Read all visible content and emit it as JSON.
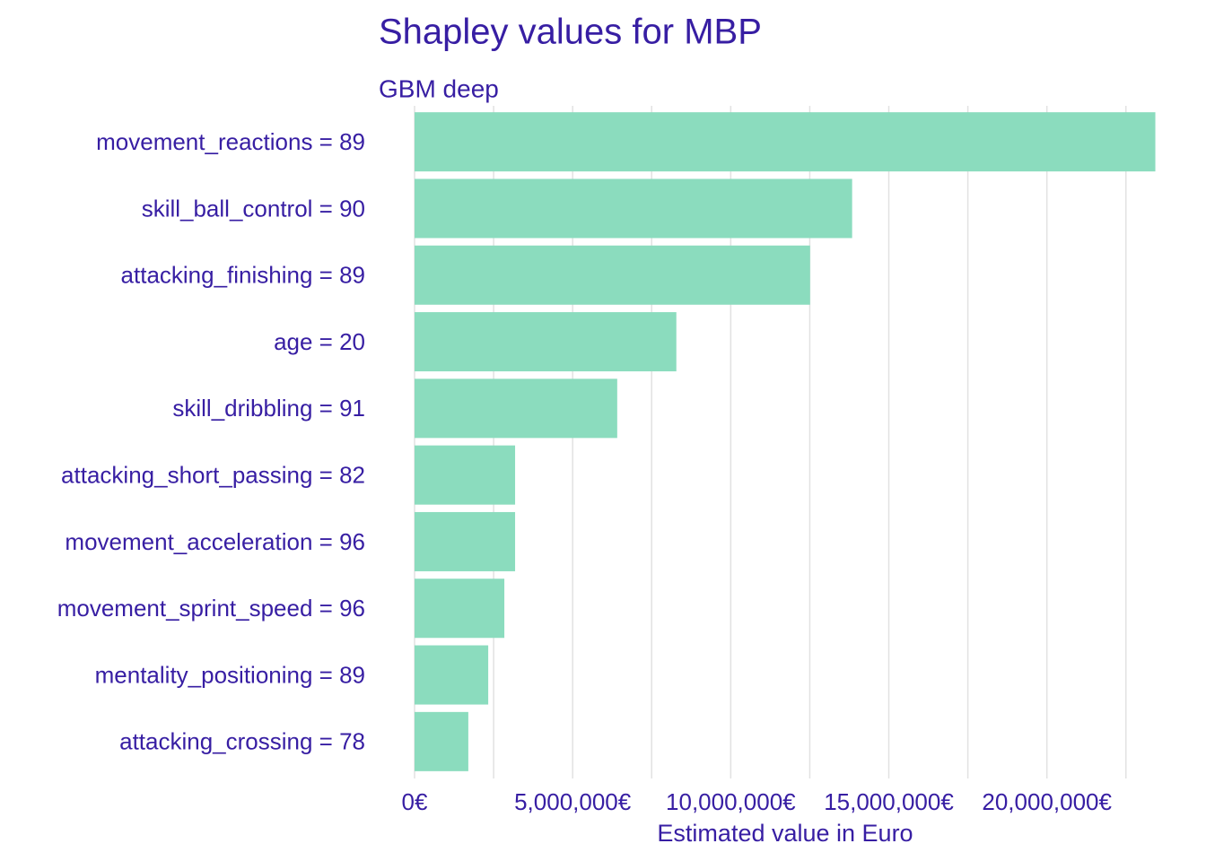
{
  "chart_data": {
    "type": "bar",
    "orientation": "horizontal",
    "title": "Shapley values for MBP",
    "subtitle": "GBM deep",
    "xlabel": "Estimated value in Euro",
    "categories": [
      "movement_reactions = 89",
      "skill_ball_control = 90",
      "attacking_finishing = 89",
      "age = 20",
      "skill_dribbling = 91",
      "attacking_short_passing = 82",
      "movement_acceleration = 96",
      "movement_sprint_speed = 96",
      "mentality_positioning = 89",
      "attacking_crossing = 78"
    ],
    "values": [
      23430000,
      13840000,
      12510000,
      8280000,
      6410000,
      3180000,
      3180000,
      2840000,
      2330000,
      1700000
    ],
    "color": "#8bdcbe",
    "xlim": [
      0,
      23500000
    ],
    "xticks": [
      {
        "value": 0,
        "label": "0€"
      },
      {
        "value": 5000000,
        "label": "5,000,000€"
      },
      {
        "value": 10000000,
        "label": "10,000,000€"
      },
      {
        "value": 15000000,
        "label": "15,000,000€"
      },
      {
        "value": 20000000,
        "label": "20,000,000€"
      }
    ],
    "minor_xticks": [
      2500000,
      7500000,
      12500000,
      17500000,
      22500000
    ],
    "grid": true
  }
}
